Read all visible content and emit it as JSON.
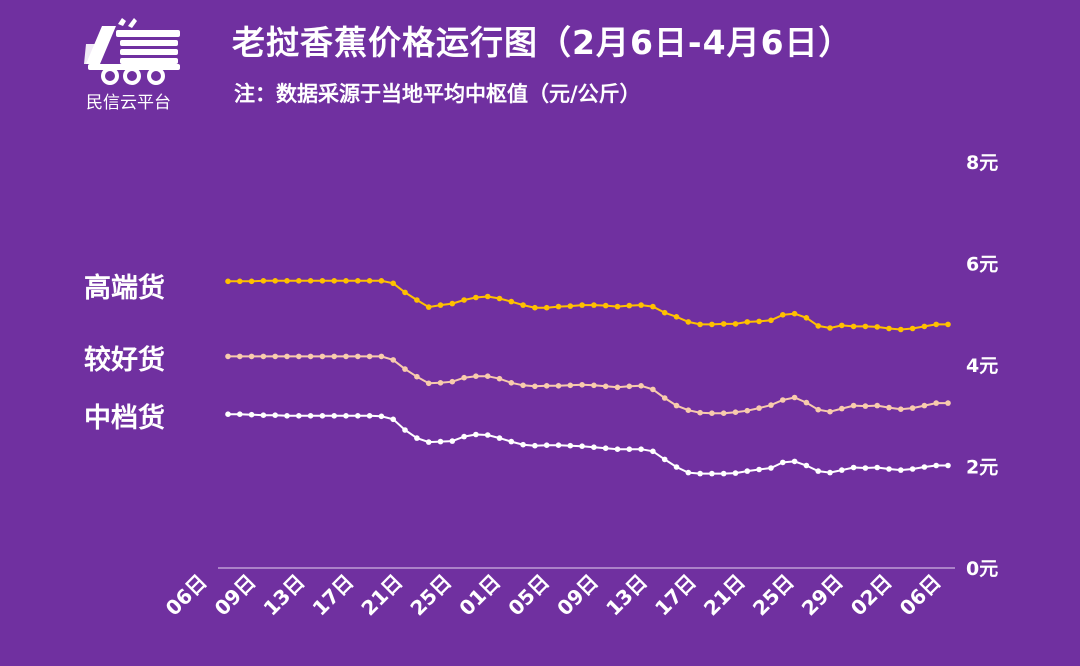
{
  "header": {
    "logo_text": "民信云平台",
    "title": "老挝香蕉价格运行图（2月6日-4月6日）",
    "subtitle": "注：数据采源于当地平均中枢值（元/公斤）"
  },
  "colors": {
    "background": "#7030a0",
    "high": "#ffc000",
    "good": "#f8cbad",
    "mid": "#ffffff"
  },
  "chart_data": {
    "type": "line",
    "title": "老挝香蕉价格运行图（2月6日-4月6日）",
    "ylabel": "元/公斤",
    "ylim": [
      0,
      8
    ],
    "y_ticks": [
      "0元",
      "2元",
      "4元",
      "6元",
      "8元"
    ],
    "x_tick_labels": [
      "06日",
      "09日",
      "13日",
      "17日",
      "21日",
      "25日",
      "01日",
      "05日",
      "09日",
      "13日",
      "17日",
      "21日",
      "25日",
      "29日",
      "02日",
      "06日"
    ],
    "legend": "left",
    "grid": false,
    "series": [
      {
        "name": "高端货",
        "values": [
          5.65,
          5.65,
          5.65,
          5.66,
          5.66,
          5.66,
          5.66,
          5.66,
          5.66,
          5.66,
          5.66,
          5.66,
          5.66,
          5.66,
          5.61,
          5.43,
          5.28,
          5.14,
          5.18,
          5.21,
          5.28,
          5.33,
          5.35,
          5.31,
          5.25,
          5.18,
          5.13,
          5.13,
          5.15,
          5.16,
          5.18,
          5.18,
          5.17,
          5.15,
          5.17,
          5.18,
          5.15,
          5.03,
          4.95,
          4.85,
          4.8,
          4.8,
          4.81,
          4.81,
          4.85,
          4.86,
          4.88,
          4.99,
          5.01,
          4.93,
          4.77,
          4.73,
          4.78,
          4.76,
          4.76,
          4.75,
          4.72,
          4.7,
          4.72,
          4.76,
          4.8,
          4.8
        ]
      },
      {
        "name": "较好货",
        "values": [
          4.17,
          4.17,
          4.17,
          4.17,
          4.17,
          4.17,
          4.17,
          4.17,
          4.17,
          4.17,
          4.17,
          4.17,
          4.17,
          4.17,
          4.1,
          3.92,
          3.77,
          3.64,
          3.65,
          3.67,
          3.75,
          3.78,
          3.78,
          3.73,
          3.65,
          3.6,
          3.58,
          3.59,
          3.59,
          3.6,
          3.61,
          3.6,
          3.58,
          3.56,
          3.58,
          3.59,
          3.52,
          3.35,
          3.2,
          3.11,
          3.06,
          3.05,
          3.05,
          3.07,
          3.1,
          3.15,
          3.21,
          3.31,
          3.36,
          3.26,
          3.12,
          3.08,
          3.14,
          3.2,
          3.19,
          3.2,
          3.16,
          3.13,
          3.15,
          3.2,
          3.25,
          3.25
        ]
      },
      {
        "name": "中档货",
        "values": [
          3.03,
          3.03,
          3.02,
          3.01,
          3.01,
          3.0,
          3.0,
          3.0,
          3.0,
          3.0,
          3.0,
          3.0,
          3.0,
          2.99,
          2.93,
          2.72,
          2.56,
          2.48,
          2.49,
          2.5,
          2.59,
          2.63,
          2.62,
          2.56,
          2.49,
          2.43,
          2.41,
          2.42,
          2.42,
          2.41,
          2.4,
          2.38,
          2.36,
          2.34,
          2.34,
          2.34,
          2.3,
          2.14,
          1.99,
          1.88,
          1.86,
          1.86,
          1.86,
          1.87,
          1.91,
          1.94,
          1.97,
          2.08,
          2.1,
          2.02,
          1.91,
          1.88,
          1.93,
          1.98,
          1.97,
          1.98,
          1.95,
          1.93,
          1.95,
          1.99,
          2.02,
          2.02
        ]
      }
    ]
  }
}
